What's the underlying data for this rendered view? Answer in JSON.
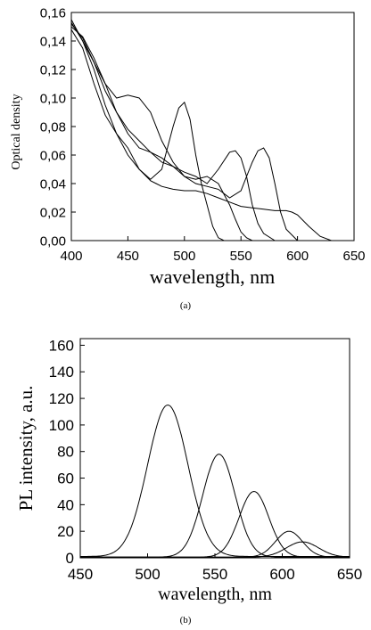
{
  "chart_data": [
    {
      "panel_label": "(a)",
      "type": "line",
      "xlabel": "wavelength, nm",
      "ylabel": "Optical density",
      "xlim": [
        400,
        650
      ],
      "ylim": [
        0,
        0.16
      ],
      "x_ticks": [
        400,
        450,
        500,
        550,
        600,
        650
      ],
      "x_tick_labels": [
        "400",
        "450",
        "500",
        "550",
        "600",
        "650"
      ],
      "y_ticks": [
        0,
        0.02,
        0.04,
        0.06,
        0.08,
        0.1,
        0.12,
        0.14,
        0.16
      ],
      "y_tick_labels": [
        "0,00",
        "0,02",
        "0,04",
        "0,06",
        "0,08",
        "0,10",
        "0,12",
        "0,14",
        "0,16"
      ],
      "grid": false,
      "series": [
        {
          "x": [
            400,
            410,
            420,
            430,
            440,
            450,
            460,
            470,
            480,
            490,
            495,
            500,
            505,
            510,
            515,
            520,
            525,
            530,
            535,
            540
          ],
          "y": [
            0.155,
            0.14,
            0.12,
            0.095,
            0.075,
            0.06,
            0.05,
            0.043,
            0.05,
            0.08,
            0.093,
            0.097,
            0.085,
            0.06,
            0.04,
            0.025,
            0.01,
            0.002,
            0.0,
            0.0
          ]
        },
        {
          "x": [
            400,
            410,
            420,
            430,
            440,
            450,
            460,
            470,
            480,
            490,
            500,
            510,
            520,
            530,
            540,
            545,
            550,
            555,
            560,
            570
          ],
          "y": [
            0.153,
            0.14,
            0.125,
            0.11,
            0.1,
            0.102,
            0.1,
            0.09,
            0.07,
            0.055,
            0.045,
            0.043,
            0.045,
            0.04,
            0.025,
            0.015,
            0.006,
            0.002,
            0.0,
            0.0
          ]
        },
        {
          "x": [
            400,
            410,
            420,
            430,
            440,
            450,
            460,
            470,
            480,
            490,
            500,
            510,
            520,
            530,
            540,
            545,
            550,
            555,
            560,
            565,
            570,
            580
          ],
          "y": [
            0.152,
            0.142,
            0.125,
            0.105,
            0.09,
            0.078,
            0.07,
            0.062,
            0.055,
            0.052,
            0.048,
            0.045,
            0.04,
            0.05,
            0.062,
            0.063,
            0.058,
            0.045,
            0.025,
            0.012,
            0.005,
            0.0
          ]
        },
        {
          "x": [
            400,
            410,
            420,
            430,
            440,
            450,
            460,
            470,
            480,
            490,
            500,
            510,
            520,
            530,
            540,
            550,
            555,
            560,
            565,
            570,
            575,
            580,
            585,
            590,
            600
          ],
          "y": [
            0.15,
            0.143,
            0.128,
            0.11,
            0.09,
            0.075,
            0.065,
            0.062,
            0.058,
            0.052,
            0.045,
            0.04,
            0.038,
            0.036,
            0.03,
            0.035,
            0.045,
            0.055,
            0.063,
            0.065,
            0.058,
            0.04,
            0.02,
            0.008,
            0.0
          ]
        },
        {
          "x": [
            400,
            410,
            420,
            430,
            440,
            450,
            460,
            470,
            475,
            480,
            490,
            500,
            510,
            520,
            530,
            540,
            550,
            560,
            570,
            580,
            590,
            595,
            600,
            610,
            620,
            630,
            640
          ],
          "y": [
            0.148,
            0.135,
            0.11,
            0.088,
            0.075,
            0.065,
            0.05,
            0.042,
            0.04,
            0.038,
            0.036,
            0.035,
            0.035,
            0.033,
            0.03,
            0.027,
            0.024,
            0.023,
            0.022,
            0.021,
            0.021,
            0.02,
            0.018,
            0.01,
            0.003,
            0.0,
            0.0
          ]
        }
      ]
    },
    {
      "panel_label": "(b)",
      "type": "line",
      "xlabel": "wavelength, nm",
      "ylabel": "PL intensity, a.u.",
      "xlim": [
        450,
        650
      ],
      "ylim": [
        0,
        165
      ],
      "x_ticks": [
        450,
        500,
        550,
        600,
        650
      ],
      "x_tick_labels": [
        "450",
        "500",
        "550",
        "600",
        "650"
      ],
      "y_ticks": [
        0,
        20,
        40,
        60,
        80,
        100,
        120,
        140,
        160
      ],
      "y_tick_labels": [
        "0",
        "20",
        "40",
        "60",
        "80",
        "100",
        "120",
        "140",
        "160"
      ],
      "grid": false,
      "series": [
        {
          "peak_x": 515,
          "peak_y": 115,
          "width": 15,
          "base": 1
        },
        {
          "peak_x": 553,
          "peak_y": 78,
          "width": 12,
          "base": 0.5
        },
        {
          "peak_x": 579,
          "peak_y": 50,
          "width": 11,
          "base": 0.5
        },
        {
          "peak_x": 605,
          "peak_y": 20,
          "width": 10,
          "base": 0.5
        },
        {
          "peak_x": 615,
          "peak_y": 12,
          "width": 12,
          "base": 0.5
        }
      ]
    }
  ]
}
